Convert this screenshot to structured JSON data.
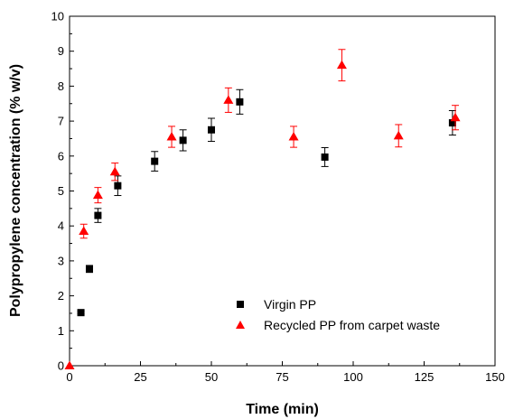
{
  "chart_data": {
    "type": "scatter",
    "xlabel": "Time (min)",
    "ylabel": "Polypropylene concentration (% w/v)",
    "xlim": [
      0,
      150
    ],
    "ylim": [
      0,
      10
    ],
    "x_ticks": [
      "0",
      "25",
      "50",
      "75",
      "100",
      "125",
      "150"
    ],
    "y_ticks": [
      "0",
      "1",
      "2",
      "3",
      "4",
      "5",
      "6",
      "7",
      "8",
      "9",
      "10"
    ],
    "grid": false,
    "legend_position": "bottom-right",
    "series": [
      {
        "name": "Virgin PP",
        "marker": "square",
        "color": "#000000",
        "points": [
          {
            "x": 4,
            "y": 1.52,
            "err": 0.04
          },
          {
            "x": 7,
            "y": 2.77,
            "err": 0.1
          },
          {
            "x": 10,
            "y": 4.3,
            "err": 0.2
          },
          {
            "x": 17,
            "y": 5.15,
            "err": 0.28
          },
          {
            "x": 30,
            "y": 5.85,
            "err": 0.28
          },
          {
            "x": 40,
            "y": 6.45,
            "err": 0.3
          },
          {
            "x": 50,
            "y": 6.75,
            "err": 0.33
          },
          {
            "x": 60,
            "y": 7.55,
            "err": 0.35
          },
          {
            "x": 90,
            "y": 5.97,
            "err": 0.27
          },
          {
            "x": 135,
            "y": 6.95,
            "err": 0.35
          }
        ]
      },
      {
        "name": "Recycled PP from carpet waste",
        "marker": "triangle",
        "color": "#ff0000",
        "points": [
          {
            "x": 0,
            "y": 0,
            "err": 0
          },
          {
            "x": 5,
            "y": 3.85,
            "err": 0.2
          },
          {
            "x": 10,
            "y": 4.88,
            "err": 0.22
          },
          {
            "x": 16,
            "y": 5.55,
            "err": 0.25
          },
          {
            "x": 36,
            "y": 6.55,
            "err": 0.3
          },
          {
            "x": 56,
            "y": 7.6,
            "err": 0.35
          },
          {
            "x": 79,
            "y": 6.55,
            "err": 0.3
          },
          {
            "x": 96,
            "y": 8.6,
            "err": 0.45
          },
          {
            "x": 116,
            "y": 6.58,
            "err": 0.32
          },
          {
            "x": 136,
            "y": 7.1,
            "err": 0.35
          }
        ]
      }
    ]
  }
}
